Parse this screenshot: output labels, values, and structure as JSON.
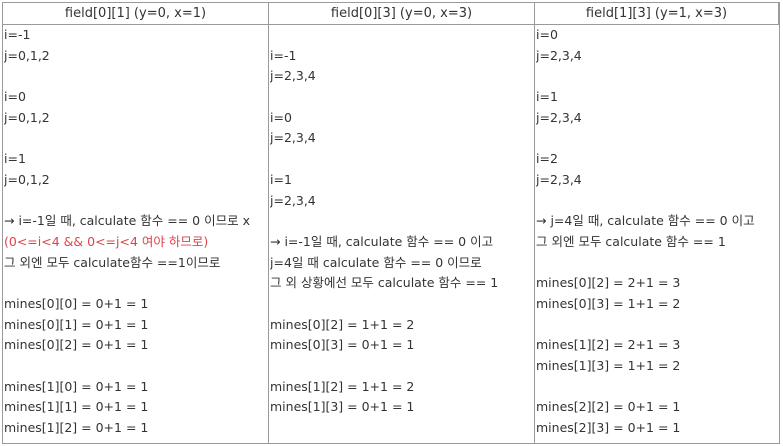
{
  "columns": [
    {
      "header": "field[0][1] (y=0, x=1)",
      "lines": [
        {
          "t": "i=-1"
        },
        {
          "t": "j=0,1,2"
        },
        {
          "t": ""
        },
        {
          "t": "i=0"
        },
        {
          "t": "j=0,1,2"
        },
        {
          "t": ""
        },
        {
          "t": "i=1"
        },
        {
          "t": "j=0,1,2"
        },
        {
          "t": ""
        },
        {
          "t": "→ i=-1일 때, calculate 함수 == 0 이므로 x"
        },
        {
          "t": "(0<=i<4 && 0<=j<4 여야 하므로)",
          "red": true
        },
        {
          "t": "그 외엔 모두 calculate함수 ==1이므로"
        },
        {
          "t": ""
        },
        {
          "t": "mines[0][0] = 0+1 = 1"
        },
        {
          "t": "mines[0][1] = 0+1 = 1"
        },
        {
          "t": "mines[0][2] = 0+1 = 1"
        },
        {
          "t": ""
        },
        {
          "t": "mines[1][0] = 0+1 = 1"
        },
        {
          "t": "mines[1][1] = 0+1 = 1"
        },
        {
          "t": "mines[1][2] = 0+1 = 1"
        }
      ]
    },
    {
      "header": "field[0][3] (y=0, x=3)",
      "lines": [
        {
          "t": ""
        },
        {
          "t": "i=-1"
        },
        {
          "t": "j=2,3,4"
        },
        {
          "t": ""
        },
        {
          "t": "i=0"
        },
        {
          "t": "j=2,3,4"
        },
        {
          "t": ""
        },
        {
          "t": "i=1"
        },
        {
          "t": "j=2,3,4"
        },
        {
          "t": ""
        },
        {
          "t": "→ i=-1일 때, calculate 함수 == 0 이고"
        },
        {
          "t": "j=4일 때 calculate 함수 == 0 이므로"
        },
        {
          "t": "그 외 상황에선 모두 calculate 함수 == 1"
        },
        {
          "t": ""
        },
        {
          "t": "mines[0][2] = 1+1 = 2"
        },
        {
          "t": "mines[0][3] = 0+1 = 1"
        },
        {
          "t": ""
        },
        {
          "t": "mines[1][2] = 1+1 = 2"
        },
        {
          "t": "mines[1][3] = 0+1 = 1"
        }
      ]
    },
    {
      "header": "field[1][3] (y=1, x=3)",
      "lines": [
        {
          "t": "i=0"
        },
        {
          "t": "j=2,3,4"
        },
        {
          "t": ""
        },
        {
          "t": "i=1"
        },
        {
          "t": "j=2,3,4"
        },
        {
          "t": ""
        },
        {
          "t": "i=2"
        },
        {
          "t": "j=2,3,4"
        },
        {
          "t": ""
        },
        {
          "t": "→ j=4일 때, calculate 함수 == 0 이고"
        },
        {
          "t": "그 외엔 모두 calculate 함수 == 1"
        },
        {
          "t": ""
        },
        {
          "t": "mines[0][2] = 2+1 = 3"
        },
        {
          "t": "mines[0][3] = 1+1 = 2"
        },
        {
          "t": ""
        },
        {
          "t": "mines[1][2] = 2+1 = 3"
        },
        {
          "t": "mines[1][3] = 1+1 = 2"
        },
        {
          "t": ""
        },
        {
          "t": "mines[2][2] = 0+1 = 1"
        },
        {
          "t": "mines[2][3] = 0+1 = 1"
        }
      ]
    }
  ]
}
